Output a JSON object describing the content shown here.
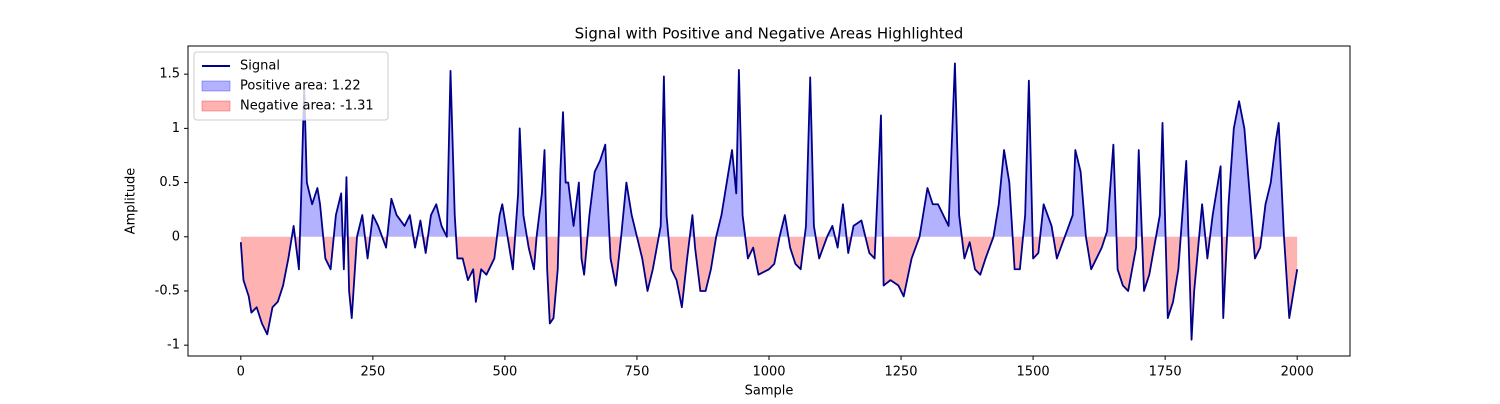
{
  "chart_data": {
    "type": "line",
    "title": "Signal with Positive and Negative Areas Highlighted",
    "x_label": "Sample",
    "y_label": "Amplitude",
    "x": [
      0,
      5,
      15,
      20,
      30,
      40,
      50,
      60,
      70,
      80,
      90,
      100,
      110,
      115,
      120,
      125,
      135,
      145,
      150,
      160,
      170,
      180,
      190,
      195,
      200,
      205,
      210,
      220,
      230,
      240,
      250,
      260,
      275,
      285,
      295,
      310,
      320,
      330,
      340,
      350,
      360,
      370,
      380,
      390,
      397,
      405,
      410,
      420,
      430,
      440,
      445,
      455,
      465,
      480,
      490,
      495,
      505,
      515,
      525,
      528,
      535,
      545,
      555,
      560,
      570,
      575,
      580,
      585,
      592,
      600,
      605,
      610,
      615,
      620,
      630,
      640,
      645,
      650,
      660,
      670,
      680,
      690,
      695,
      700,
      710,
      720,
      730,
      740,
      760,
      770,
      780,
      795,
      801,
      806,
      815,
      825,
      835,
      845,
      855,
      860,
      870,
      880,
      890,
      900,
      910,
      920,
      930,
      938,
      943,
      950,
      960,
      970,
      980,
      1000,
      1010,
      1020,
      1030,
      1040,
      1050,
      1060,
      1070,
      1078,
      1085,
      1095,
      1110,
      1120,
      1130,
      1140,
      1150,
      1160,
      1175,
      1190,
      1200,
      1212,
      1217,
      1230,
      1245,
      1255,
      1270,
      1285,
      1300,
      1310,
      1320,
      1330,
      1340,
      1352,
      1360,
      1370,
      1380,
      1390,
      1400,
      1410,
      1425,
      1435,
      1445,
      1455,
      1465,
      1475,
      1485,
      1492,
      1500,
      1510,
      1520,
      1535,
      1545,
      1560,
      1575,
      1580,
      1590,
      1600,
      1610,
      1620,
      1630,
      1640,
      1652,
      1660,
      1670,
      1680,
      1695,
      1700,
      1710,
      1720,
      1740,
      1745,
      1755,
      1765,
      1775,
      1790,
      1800,
      1805,
      1820,
      1830,
      1840,
      1855,
      1860,
      1870,
      1880,
      1890,
      1900,
      1910,
      1920,
      1930,
      1940,
      1950,
      1960,
      1965,
      1975,
      1985,
      1990,
      2000
    ],
    "series": [
      {
        "name": "Signal",
        "color": "#00008b",
        "values": [
          -0.05,
          -0.4,
          -0.55,
          -0.7,
          -0.65,
          -0.8,
          -0.9,
          -0.65,
          -0.6,
          -0.45,
          -0.2,
          0.1,
          -0.3,
          0.5,
          1.38,
          0.5,
          0.3,
          0.45,
          0.3,
          -0.2,
          -0.3,
          0.2,
          0.4,
          -0.3,
          0.55,
          -0.5,
          -0.75,
          0.0,
          0.2,
          -0.2,
          0.2,
          0.1,
          -0.1,
          0.35,
          0.2,
          0.1,
          0.2,
          -0.1,
          0.15,
          -0.15,
          0.2,
          0.3,
          0.1,
          0.0,
          1.53,
          0.2,
          -0.2,
          -0.2,
          -0.4,
          -0.3,
          -0.6,
          -0.3,
          -0.35,
          -0.2,
          0.2,
          0.3,
          0.0,
          -0.3,
          0.4,
          1.0,
          0.2,
          -0.1,
          -0.3,
          0.0,
          0.4,
          0.8,
          -0.3,
          -0.8,
          -0.75,
          -0.3,
          0.6,
          1.15,
          0.5,
          0.5,
          0.1,
          0.5,
          -0.2,
          -0.35,
          0.2,
          0.6,
          0.7,
          0.85,
          0.3,
          -0.2,
          -0.45,
          0.0,
          0.5,
          0.2,
          -0.2,
          -0.5,
          -0.3,
          0.1,
          1.48,
          0.2,
          -0.3,
          -0.4,
          -0.65,
          -0.2,
          0.2,
          -0.1,
          -0.5,
          -0.5,
          -0.3,
          0.0,
          0.2,
          0.5,
          0.8,
          0.4,
          1.54,
          0.2,
          -0.2,
          -0.1,
          -0.35,
          -0.3,
          -0.25,
          0.0,
          0.2,
          -0.1,
          -0.25,
          -0.3,
          0.1,
          1.47,
          0.1,
          -0.2,
          0.0,
          0.1,
          -0.1,
          0.3,
          -0.15,
          0.1,
          0.15,
          -0.15,
          -0.2,
          1.12,
          -0.45,
          -0.4,
          -0.45,
          -0.55,
          -0.2,
          0.0,
          0.45,
          0.3,
          0.3,
          0.2,
          0.1,
          1.6,
          0.2,
          -0.2,
          -0.05,
          -0.3,
          -0.35,
          -0.2,
          0.0,
          0.3,
          0.8,
          0.5,
          -0.3,
          -0.3,
          0.2,
          1.44,
          -0.2,
          -0.15,
          0.3,
          0.1,
          -0.2,
          0.0,
          0.2,
          0.8,
          0.6,
          0.0,
          -0.3,
          -0.2,
          -0.1,
          0.05,
          0.85,
          -0.3,
          -0.45,
          -0.5,
          -0.1,
          0.8,
          -0.5,
          -0.35,
          0.2,
          1.05,
          -0.75,
          -0.6,
          -0.3,
          0.7,
          -0.95,
          -0.5,
          0.3,
          -0.2,
          0.2,
          0.65,
          -0.75,
          0.3,
          1.0,
          1.25,
          1.0,
          0.4,
          -0.2,
          -0.1,
          0.3,
          0.5,
          0.9,
          1.05,
          0.0,
          -0.75,
          -0.6,
          -0.3
        ]
      }
    ],
    "fills": [
      {
        "name": "Positive area: 1.22",
        "color": "#0000ff",
        "side": "positive"
      },
      {
        "name": "Negative area: -1.31",
        "color": "#ff0000",
        "side": "negative"
      }
    ],
    "fill_alpha": 0.3,
    "xlim": [
      -100,
      2100
    ],
    "xticks": [
      0,
      250,
      500,
      750,
      1000,
      1250,
      1500,
      1750,
      2000
    ],
    "ylim": [
      -1.1,
      1.76
    ],
    "yticks": [
      -1.0,
      -0.5,
      0.0,
      0.5,
      1.0,
      1.5
    ],
    "legend": "upper left"
  }
}
